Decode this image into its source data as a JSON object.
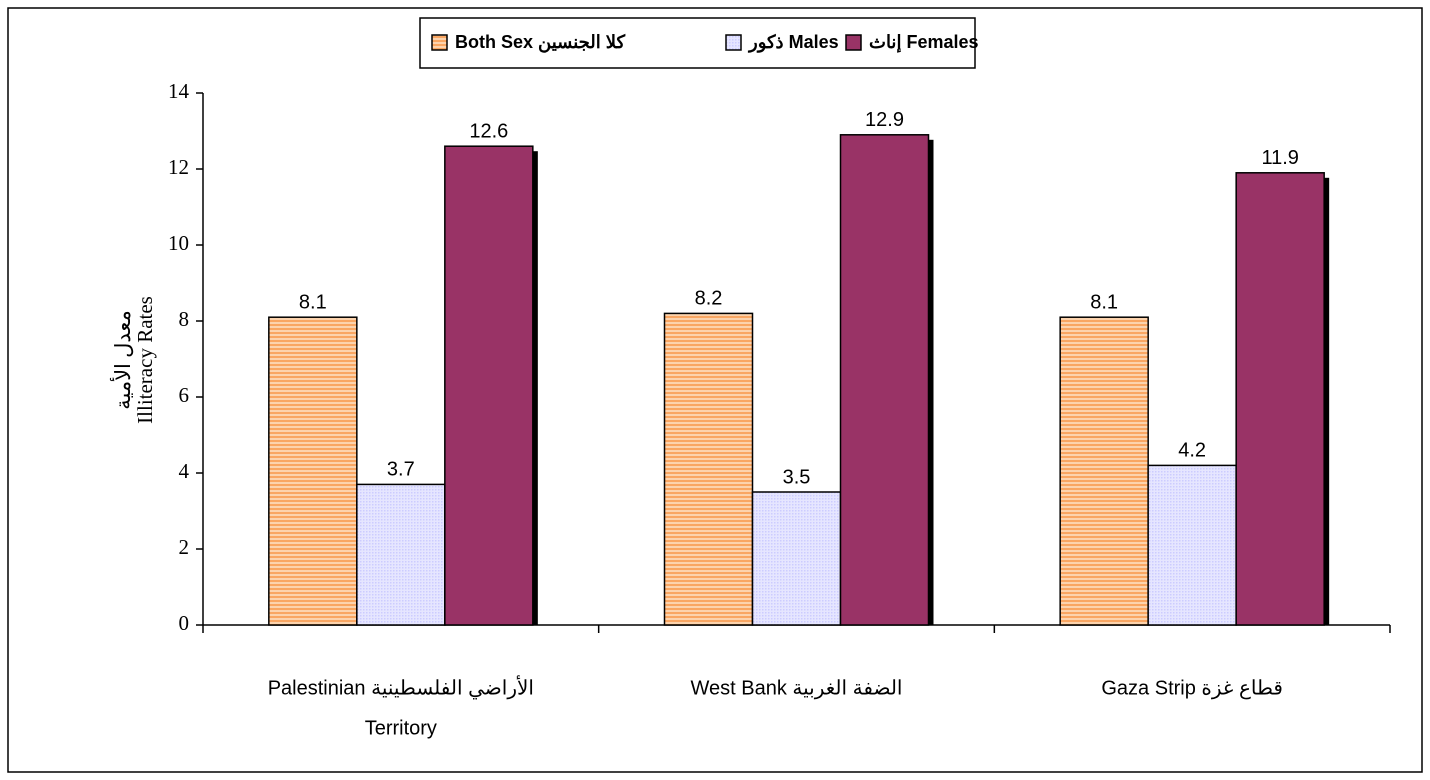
{
  "chart_data": {
    "type": "bar",
    "ylabel": [
      "معدل الأمية",
      "Illiteracy Rates"
    ],
    "categories": [
      [
        "Palestinian الأراضي الفلسطينية",
        "Territory"
      ],
      [
        "West Bank الضفة الغربية"
      ],
      [
        "Gaza Strip قطاع غزة"
      ]
    ],
    "series": [
      {
        "name": "Both Sex كلا الجنسين",
        "color": "#f9a662",
        "pattern": "stripes",
        "values": [
          8.1,
          8.2,
          8.1
        ]
      },
      {
        "name": "ذكور Males",
        "color": "#ccccff",
        "pattern": "dots",
        "values": [
          3.7,
          3.5,
          4.2
        ]
      },
      {
        "name": "إناث Females",
        "color": "#993366",
        "pattern": "solid",
        "values": [
          12.6,
          12.9,
          11.9
        ]
      }
    ],
    "ylim": [
      0,
      14
    ],
    "yticks": [
      0,
      2,
      4,
      6,
      8,
      10,
      12,
      14
    ]
  }
}
